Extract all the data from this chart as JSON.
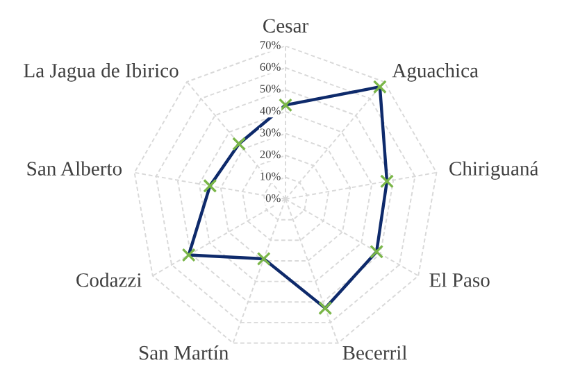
{
  "chart_data": {
    "type": "radar",
    "categories": [
      "Cesar",
      "Aguachica",
      "Chiriguaná",
      "El Paso",
      "Becerril",
      "San Martín",
      "Codazzi",
      "San Alberto",
      "La Jagua de Ibirico"
    ],
    "series": [
      {
        "color": "#0e2a6b",
        "colors": [
          "#7ab648",
          "#7ab648",
          "#7ab648",
          "#7ab648",
          "#7ab648",
          "#7ab648",
          "#7ab648",
          "#7ab648",
          "#7ab648"
        ],
        "values": [
          0.43,
          0.67,
          0.47,
          0.48,
          0.53,
          0.29,
          0.51,
          0.35,
          0.33
        ]
      }
    ],
    "ylim": [
      0,
      0.7
    ],
    "yticks": [
      {
        "value": 0,
        "label": "0%"
      },
      {
        "value": 0.1,
        "label": "10%"
      },
      {
        "value": 0.2,
        "label": "20%"
      },
      {
        "value": 0.3,
        "label": "30%"
      },
      {
        "value": 0.4,
        "label": "40%"
      },
      {
        "value": 0.5,
        "label": "50%"
      },
      {
        "value": 0.6,
        "label": "60%"
      },
      {
        "value": 0.7,
        "label": "70%"
      }
    ],
    "grid": true,
    "marker": "cross",
    "line_style": "solid"
  }
}
